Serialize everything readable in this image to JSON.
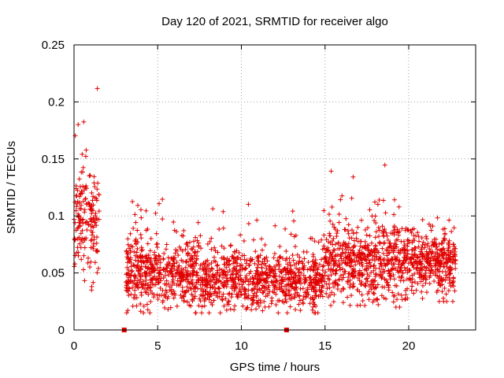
{
  "chart_data": {
    "type": "scatter",
    "title": "Day 120 of 2021, SRMTID for receiver algo",
    "xlabel": "GPS time / hours",
    "ylabel": "SRMTID / TECUs",
    "xlim": [
      0,
      24
    ],
    "ylim": [
      0,
      0.25
    ],
    "xticks": [
      0,
      5,
      10,
      15,
      20
    ],
    "xtick_labels": [
      "0",
      "5",
      "10",
      "15",
      "20"
    ],
    "yticks": [
      0,
      0.05,
      0.1,
      0.15,
      0.2,
      0.25
    ],
    "ytick_labels": [
      "0",
      "0.05",
      "0.1",
      "0.15",
      "0.2",
      "0.25"
    ],
    "grid": true,
    "marker": "+",
    "color": "#e00000",
    "segments": [
      {
        "x_start": 0.0,
        "x_end": 1.5,
        "y_low": 0.035,
        "y_high": 0.22,
        "y_center": 0.09,
        "count": 170
      },
      {
        "x_start": 3.1,
        "x_end": 7.5,
        "y_low": 0.015,
        "y_high": 0.125,
        "y_center": 0.048,
        "count": 520
      },
      {
        "x_start": 7.5,
        "x_end": 14.9,
        "y_low": 0.015,
        "y_high": 0.115,
        "y_center": 0.042,
        "count": 820
      },
      {
        "x_start": 14.9,
        "x_end": 19.5,
        "y_low": 0.02,
        "y_high": 0.152,
        "y_center": 0.058,
        "count": 560
      },
      {
        "x_start": 19.5,
        "x_end": 22.8,
        "y_low": 0.025,
        "y_high": 0.105,
        "y_center": 0.058,
        "count": 420
      }
    ],
    "gap_markers_x": [
      3.0,
      12.7
    ]
  }
}
